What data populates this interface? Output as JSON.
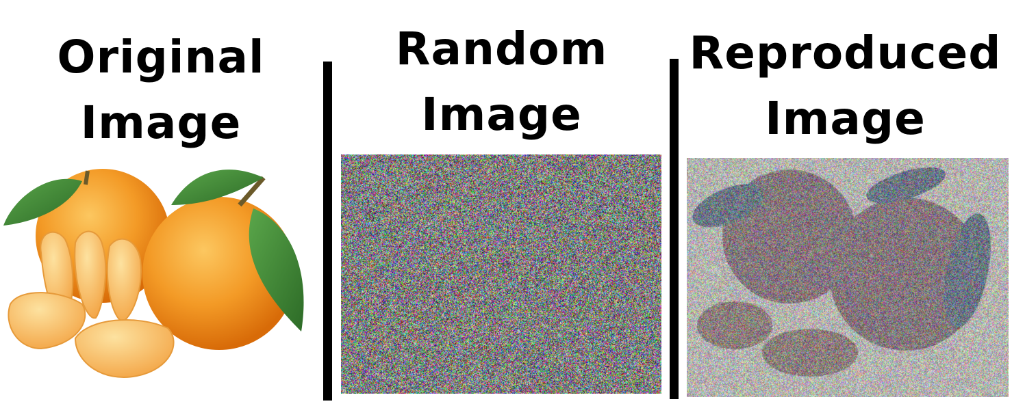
{
  "panels": [
    {
      "id": "original",
      "title_line1": "Original",
      "title_line2": "Image"
    },
    {
      "id": "random",
      "title_line1": "Random",
      "title_line2": "Image"
    },
    {
      "id": "reproduced",
      "title_line1": "Reproduced",
      "title_line2": "Image"
    }
  ],
  "colors": {
    "background": "#ffffff",
    "divider": "#000000",
    "orange_light": "#f8b24a",
    "orange_dark": "#e57a10",
    "leaf": "#3f8a36"
  }
}
